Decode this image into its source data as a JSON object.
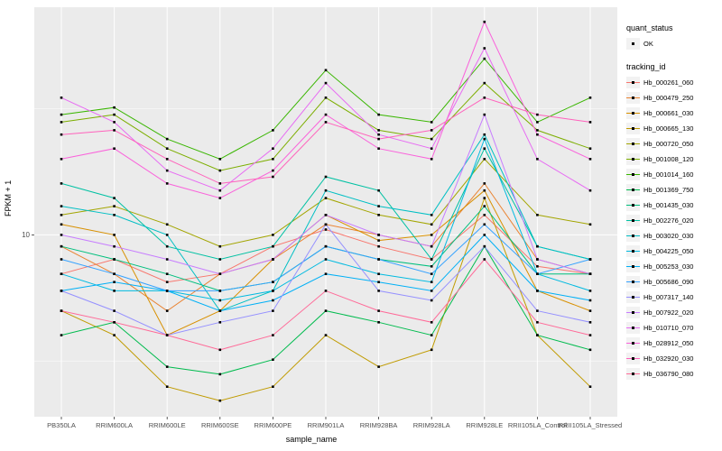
{
  "chart_data": {
    "type": "line",
    "title": "",
    "xlabel": "sample_name",
    "ylabel": "FPKM + 1",
    "y_scale": "log10",
    "ylim": [
      1.9,
      80
    ],
    "y_ticks": [
      {
        "value": 10,
        "label": "10"
      }
    ],
    "y_minor_gridlines": [
      3.162,
      31.62
    ],
    "grid": true,
    "panel_bg": "#EBEBEB",
    "gridline_color": "#FFFFFF",
    "marker": "black-point",
    "categories": [
      "PB350LA",
      "RRIM600LA",
      "RRIM600LE",
      "RRIM600SE",
      "RRIM600PE",
      "RRIM901LA",
      "RRIM928BA",
      "RRIM928LA",
      "RRIM928LE",
      "RRII105LA_Control",
      "RRII105LA_Stressed"
    ],
    "series": [
      {
        "name": "Hb_000261_060",
        "color": "#F8766D",
        "values": [
          7,
          8,
          6.5,
          7,
          9,
          10.5,
          9,
          8,
          12,
          7.5,
          7
        ]
      },
      {
        "name": "Hb_000479_250",
        "color": "#EA8331",
        "values": [
          9,
          7,
          5,
          7,
          8,
          11,
          10,
          9,
          16,
          8,
          7
        ]
      },
      {
        "name": "Hb_000661_030",
        "color": "#D89000",
        "values": [
          11,
          10,
          4,
          5,
          8,
          12,
          9.5,
          10,
          15,
          6,
          5
        ]
      },
      {
        "name": "Hb_000665_130",
        "color": "#C09B00",
        "values": [
          5,
          4,
          2.5,
          2.2,
          2.5,
          4,
          3,
          3.5,
          14,
          4,
          2.5
        ]
      },
      {
        "name": "Hb_000720_050",
        "color": "#A3A500",
        "values": [
          12,
          13,
          11,
          9,
          10,
          14,
          12,
          11,
          20,
          12,
          11
        ]
      },
      {
        "name": "Hb_001008_120",
        "color": "#7CAE00",
        "values": [
          28,
          30,
          22,
          18,
          20,
          35,
          26,
          24,
          40,
          26,
          22
        ]
      },
      {
        "name": "Hb_001014_160",
        "color": "#39B600",
        "values": [
          30,
          32,
          24,
          20,
          26,
          45,
          30,
          28,
          50,
          28,
          35
        ]
      },
      {
        "name": "Hb_001369_750",
        "color": "#00BB4E",
        "values": [
          4,
          4.5,
          3,
          2.8,
          3.2,
          5,
          4.5,
          4,
          9,
          4,
          3.5
        ]
      },
      {
        "name": "Hb_001435_030",
        "color": "#00BF7D",
        "values": [
          9,
          8,
          7,
          6,
          6.5,
          9,
          8,
          7.5,
          13,
          7,
          7
        ]
      },
      {
        "name": "Hb_002276_020",
        "color": "#00C1A3",
        "values": [
          16,
          14,
          9,
          8,
          9,
          17,
          15,
          8,
          22,
          9,
          8
        ]
      },
      {
        "name": "Hb_003020_030",
        "color": "#00BFC4",
        "values": [
          13,
          12,
          10,
          5,
          6,
          15,
          13,
          12,
          25,
          9,
          8
        ]
      },
      {
        "name": "Hb_004225_050",
        "color": "#00BAE0",
        "values": [
          7,
          6,
          6,
          5.5,
          6,
          8,
          7,
          6.5,
          24,
          7,
          6
        ]
      },
      {
        "name": "Hb_005253_030",
        "color": "#00B0F6",
        "values": [
          6,
          6.5,
          6,
          5,
          5.5,
          7,
          6.5,
          6,
          10,
          6,
          5.5
        ]
      },
      {
        "name": "Hb_005686_090",
        "color": "#35A2FF",
        "values": [
          8,
          7,
          6,
          6,
          6.5,
          9,
          8,
          7,
          11,
          7,
          8
        ]
      },
      {
        "name": "Hb_007317_140",
        "color": "#9590FF",
        "values": [
          6,
          5,
          4,
          4.5,
          5,
          11,
          6,
          5.5,
          9,
          5,
          4.5
        ]
      },
      {
        "name": "Hb_007922_020",
        "color": "#C77CFF",
        "values": [
          10,
          9,
          8,
          7,
          8,
          12,
          10,
          9,
          30,
          8,
          7
        ]
      },
      {
        "name": "Hb_010710_070",
        "color": "#E76BF3",
        "values": [
          35,
          28,
          18,
          15,
          22,
          40,
          25,
          22,
          55,
          20,
          15
        ]
      },
      {
        "name": "Hb_028912_050",
        "color": "#FA62DB",
        "values": [
          20,
          22,
          16,
          14,
          18,
          30,
          22,
          20,
          70,
          25,
          20
        ]
      },
      {
        "name": "Hb_032920_030",
        "color": "#FF62BC",
        "values": [
          25,
          26,
          20,
          16,
          17,
          28,
          24,
          26,
          35,
          30,
          28
        ]
      },
      {
        "name": "Hb_036790_080",
        "color": "#FF6A98",
        "values": [
          5,
          4.5,
          4,
          3.5,
          4,
          6,
          5,
          4.5,
          8,
          4.5,
          4
        ]
      }
    ],
    "legend_position": "right"
  },
  "axes": {
    "x_title": "sample_name",
    "y_title": "FPKM + 1"
  },
  "legend": {
    "quant_status_title": "quant_status",
    "quant_status_items": [
      {
        "label": "OK",
        "marker": "black-point"
      }
    ],
    "tracking_title": "tracking_id"
  }
}
